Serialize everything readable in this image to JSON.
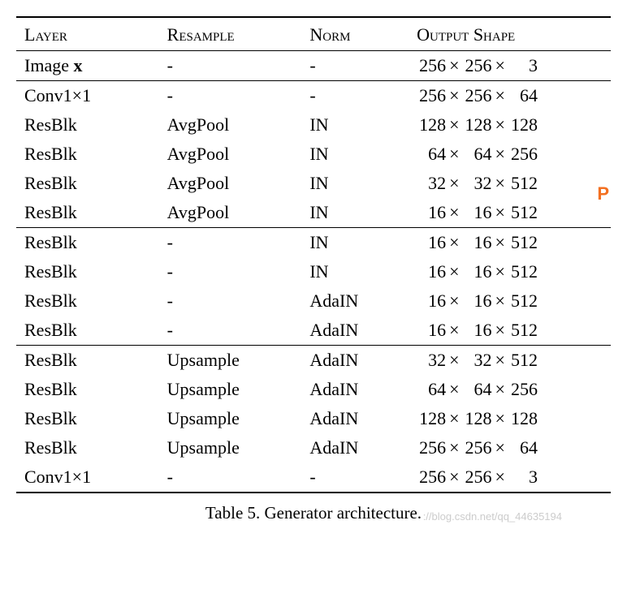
{
  "headers": {
    "layer": "Layer",
    "resample": "Resample",
    "norm": "Norm",
    "shape": "Output Shape"
  },
  "sections": [
    {
      "rows": [
        {
          "layer_html": "Image <span class='bold'>x</span>",
          "resample": "-",
          "norm": "-",
          "d1": "256",
          "d2": "256",
          "d3": "3"
        }
      ]
    },
    {
      "rows": [
        {
          "layer_html": "Conv1×1",
          "resample": "-",
          "norm": "-",
          "d1": "256",
          "d2": "256",
          "d3": "64"
        },
        {
          "layer_html": "ResBlk",
          "resample": "AvgPool",
          "norm": "IN",
          "d1": "128",
          "d2": "128",
          "d3": "128"
        },
        {
          "layer_html": "ResBlk",
          "resample": "AvgPool",
          "norm": "IN",
          "d1": "64",
          "d2": "64",
          "d3": "256"
        },
        {
          "layer_html": "ResBlk",
          "resample": "AvgPool",
          "norm": "IN",
          "d1": "32",
          "d2": "32",
          "d3": "512"
        },
        {
          "layer_html": "ResBlk",
          "resample": "AvgPool",
          "norm": "IN",
          "d1": "16",
          "d2": "16",
          "d3": "512"
        }
      ]
    },
    {
      "rows": [
        {
          "layer_html": "ResBlk",
          "resample": "-",
          "norm": "IN",
          "d1": "16",
          "d2": "16",
          "d3": "512"
        },
        {
          "layer_html": "ResBlk",
          "resample": "-",
          "norm": "IN",
          "d1": "16",
          "d2": "16",
          "d3": "512"
        },
        {
          "layer_html": "ResBlk",
          "resample": "-",
          "norm": "AdaIN",
          "d1": "16",
          "d2": "16",
          "d3": "512"
        },
        {
          "layer_html": "ResBlk",
          "resample": "-",
          "norm": "AdaIN",
          "d1": "16",
          "d2": "16",
          "d3": "512"
        }
      ]
    },
    {
      "rows": [
        {
          "layer_html": "ResBlk",
          "resample": "Upsample",
          "norm": "AdaIN",
          "d1": "32",
          "d2": "32",
          "d3": "512"
        },
        {
          "layer_html": "ResBlk",
          "resample": "Upsample",
          "norm": "AdaIN",
          "d1": "64",
          "d2": "64",
          "d3": "256"
        },
        {
          "layer_html": "ResBlk",
          "resample": "Upsample",
          "norm": "AdaIN",
          "d1": "128",
          "d2": "128",
          "d3": "128"
        },
        {
          "layer_html": "ResBlk",
          "resample": "Upsample",
          "norm": "AdaIN",
          "d1": "256",
          "d2": "256",
          "d3": "64"
        },
        {
          "layer_html": "Conv1×1",
          "resample": "-",
          "norm": "-",
          "d1": "256",
          "d2": "256",
          "d3": "3"
        }
      ]
    }
  ],
  "caption": "Table 5. Generator architecture.",
  "watermark": "://blog.csdn.net/qq_44635194",
  "side_icon": "P",
  "styling": {
    "font_family": "Times New Roman",
    "header_fontsize": 22,
    "body_fontsize": 22,
    "caption_fontsize": 21,
    "rule_color": "#000000",
    "rule_top_width": 2,
    "rule_mid_width": 1.5,
    "rule_bottom_width": 2,
    "background_color": "#ffffff",
    "watermark_color": "#cccccc",
    "side_icon_color": "#f37021",
    "shape_num_widths": {
      "d1": 36,
      "d2": 36,
      "d3": 36
    }
  }
}
